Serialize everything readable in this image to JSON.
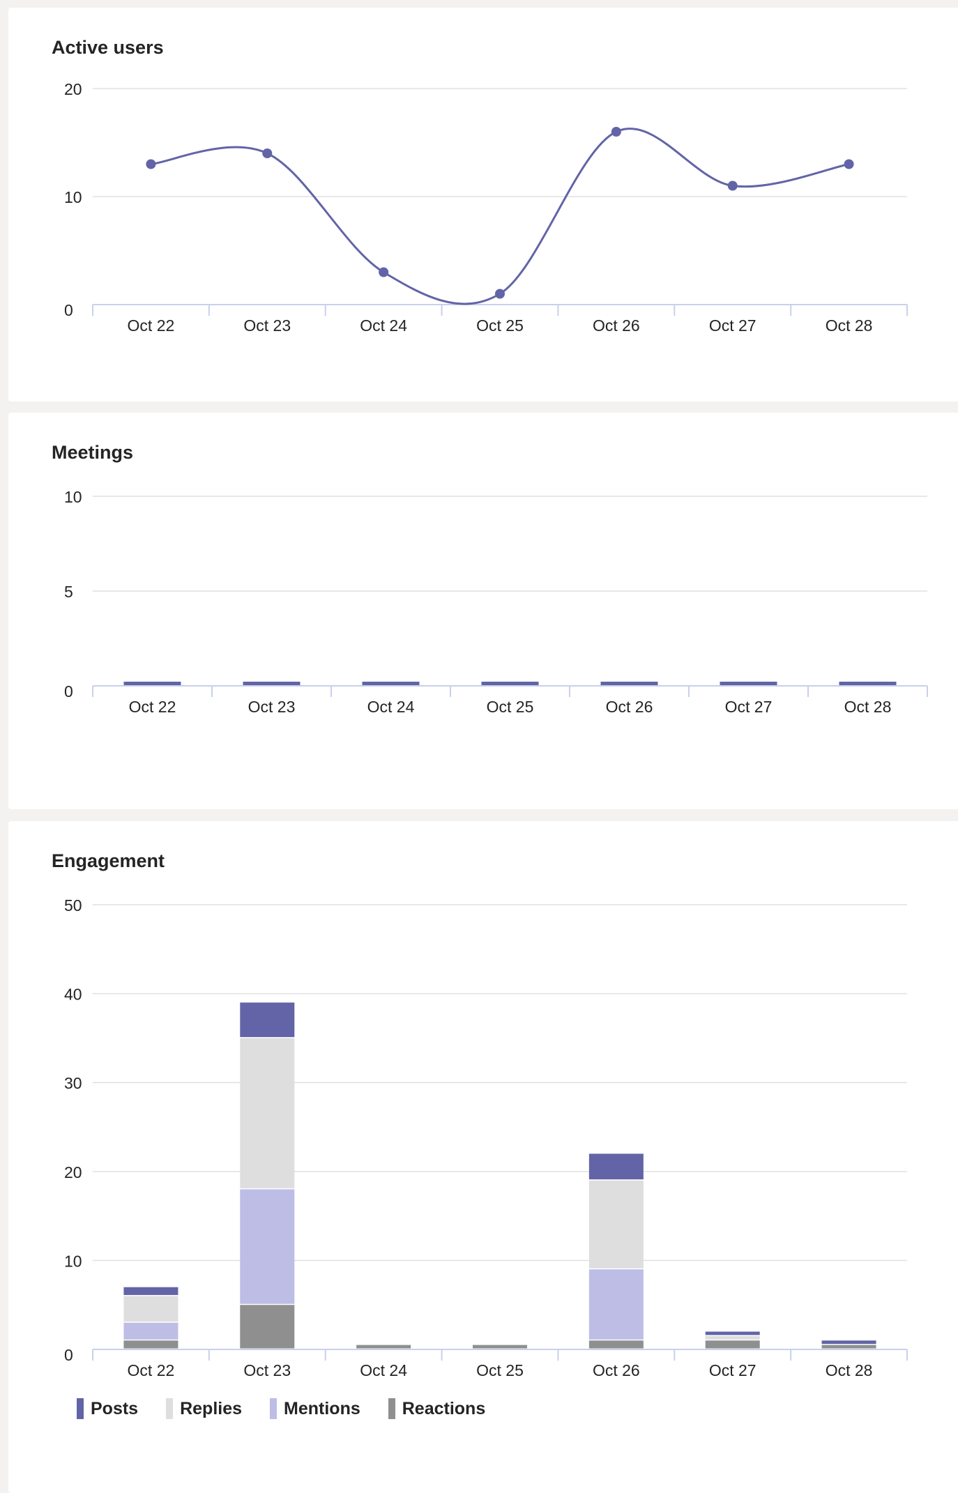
{
  "cards": {
    "active_users": {
      "title": "Active users"
    },
    "meetings": {
      "title": "Meetings"
    },
    "engagement": {
      "title": "Engagement"
    }
  },
  "colors": {
    "posts": "#6264a7",
    "replies": "#dedede",
    "mentions": "#bdbde6",
    "reactions": "#8f8f8f",
    "grid": "#e0e0e0",
    "axis": "#c7d1ea"
  },
  "chart_data": [
    {
      "type": "line",
      "title": "Active users",
      "categories": [
        "Oct 22",
        "Oct 23",
        "Oct 24",
        "Oct 25",
        "Oct 26",
        "Oct 27",
        "Oct 28"
      ],
      "values": [
        13,
        14,
        3,
        1,
        16,
        11,
        13
      ],
      "ylim": [
        0,
        20
      ],
      "yticks": [
        0,
        10,
        20
      ],
      "grid": true,
      "color": "#6264a7"
    },
    {
      "type": "bar",
      "title": "Meetings",
      "categories": [
        "Oct 22",
        "Oct 23",
        "Oct 24",
        "Oct 25",
        "Oct 26",
        "Oct 27",
        "Oct 28"
      ],
      "values": [
        0,
        0,
        0,
        0,
        0,
        0,
        0
      ],
      "ylim": [
        0,
        10
      ],
      "yticks": [
        0,
        5,
        10
      ],
      "grid": true,
      "color": "#6264a7"
    },
    {
      "type": "bar",
      "stacked": true,
      "title": "Engagement",
      "categories": [
        "Oct 22",
        "Oct 23",
        "Oct 24",
        "Oct 25",
        "Oct 26",
        "Oct 27",
        "Oct 28"
      ],
      "ylim": [
        0,
        50
      ],
      "yticks": [
        0,
        10,
        20,
        30,
        40,
        50
      ],
      "grid": true,
      "legend_position": "bottom-left",
      "series": [
        {
          "name": "Reactions",
          "color": "#8f8f8f",
          "values": [
            1,
            5,
            0.5,
            0.5,
            1,
            1,
            0.5
          ]
        },
        {
          "name": "Mentions",
          "color": "#bdbde6",
          "values": [
            2,
            13,
            0,
            0,
            8,
            0,
            0
          ]
        },
        {
          "name": "Replies",
          "color": "#dedede",
          "values": [
            3,
            17,
            0,
            0,
            10,
            0.5,
            0
          ]
        },
        {
          "name": "Posts",
          "color": "#6264a7",
          "values": [
            1,
            4,
            0,
            0,
            3,
            0.5,
            0.5
          ]
        }
      ],
      "legend": [
        "Posts",
        "Replies",
        "Mentions",
        "Reactions"
      ]
    }
  ]
}
